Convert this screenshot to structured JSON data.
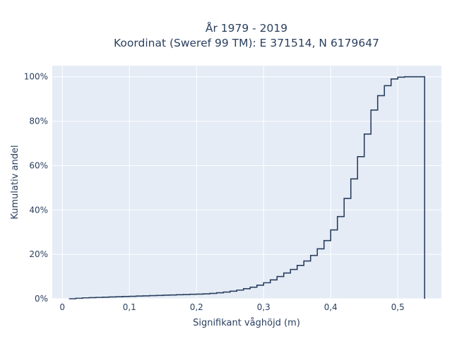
{
  "chart_data": {
    "type": "line",
    "title_lines": [
      "År 1979 - 2019",
      "Koordinat (Sweref 99 TM): E 371514, N 6179647"
    ],
    "xlabel": "Signifikant våghöjd (m)",
    "ylabel": "Kumulativ andel",
    "xlim": [
      -0.015,
      0.565
    ],
    "ylim": [
      0,
      1.05
    ],
    "x_ticks": [
      0,
      0.1,
      0.2,
      0.3,
      0.4,
      0.5
    ],
    "x_tick_labels": [
      "0",
      "0,1",
      "0,2",
      "0,3",
      "0,4",
      "0,5"
    ],
    "y_ticks": [
      0,
      0.2,
      0.4,
      0.6,
      0.8,
      1.0
    ],
    "y_tick_labels": [
      "0%",
      "20%",
      "40%",
      "60%",
      "80%",
      "100%"
    ],
    "grid": true,
    "step": "post",
    "series": [
      {
        "x": [
          0.01,
          0.02,
          0.03,
          0.04,
          0.05,
          0.06,
          0.07,
          0.08,
          0.09,
          0.1,
          0.11,
          0.12,
          0.13,
          0.14,
          0.15,
          0.16,
          0.17,
          0.18,
          0.19,
          0.2,
          0.21,
          0.22,
          0.23,
          0.24,
          0.25,
          0.26,
          0.27,
          0.28,
          0.29,
          0.3,
          0.31,
          0.32,
          0.33,
          0.34,
          0.35,
          0.36,
          0.37,
          0.38,
          0.39,
          0.4,
          0.41,
          0.42,
          0.43,
          0.44,
          0.45,
          0.46,
          0.47,
          0.48,
          0.49,
          0.5,
          0.51,
          0.52,
          0.53,
          0.54
        ],
        "y": [
          0.0,
          0.002,
          0.004,
          0.005,
          0.006,
          0.007,
          0.008,
          0.009,
          0.01,
          0.011,
          0.012,
          0.013,
          0.014,
          0.015,
          0.016,
          0.017,
          0.018,
          0.019,
          0.02,
          0.021,
          0.022,
          0.024,
          0.027,
          0.03,
          0.034,
          0.039,
          0.045,
          0.052,
          0.061,
          0.072,
          0.085,
          0.1,
          0.116,
          0.132,
          0.15,
          0.17,
          0.195,
          0.225,
          0.262,
          0.31,
          0.37,
          0.452,
          0.54,
          0.64,
          0.742,
          0.85,
          0.915,
          0.96,
          0.99,
          0.998,
          1.0,
          1.0,
          1.0,
          0.0
        ],
        "color": "#2a3f5f"
      }
    ]
  },
  "colors": {
    "plot_bg": "#e5ecf6",
    "grid": "#ffffff",
    "line": "#2a3f5f",
    "text": "#2a3f5f"
  }
}
